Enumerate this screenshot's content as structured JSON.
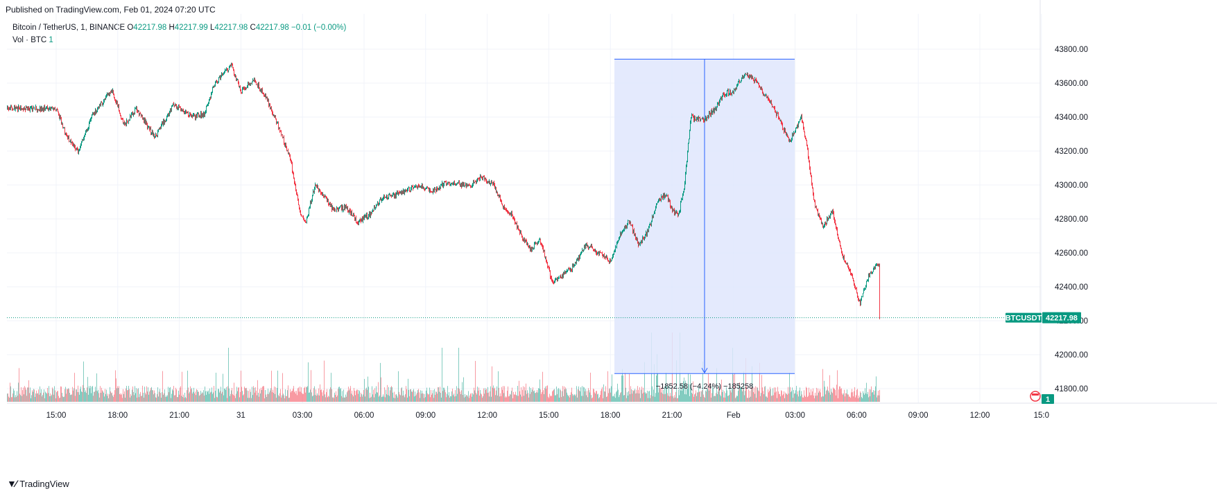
{
  "header": {
    "published": "Published on TradingView.com, Feb 01, 2024 07:20 UTC"
  },
  "legend": {
    "symbol": "Bitcoin / TetherUS, 1, BINANCE",
    "o_label": "O",
    "o_value": "42217.98",
    "h_label": "H",
    "h_value": "42217.99",
    "l_label": "L",
    "l_value": "42217.98",
    "c_label": "C",
    "c_value": "42217.98",
    "change": "−0.01 (−0.00%)",
    "vol_label": "Vol · BTC",
    "vol_value": "1"
  },
  "price_badge": {
    "symbol": "BTCUSDT",
    "value": "42217.98"
  },
  "volume_badge": "1",
  "measure_label": "−1852.58 (−4.24%) −185258",
  "footer": {
    "brand": "TradingView"
  },
  "colors": {
    "up": "#089981",
    "down": "#f23645",
    "measure_fill": "#dfe6fd",
    "measure_line": "#2962ff",
    "grid": "#f0f3fa"
  },
  "chart_data": {
    "type": "candlestick",
    "symbol": "BTCUSDT",
    "interval": "1 minute",
    "ylim": [
      41700,
      43850
    ],
    "y_ticks": [
      "43800.00",
      "43600.00",
      "43400.00",
      "43200.00",
      "43000.00",
      "42800.00",
      "42600.00",
      "42400.00",
      "42200.00",
      "42000.00",
      "41800.00"
    ],
    "x_ticks": [
      "15:00",
      "18:00",
      "21:00",
      "31",
      "03:00",
      "06:00",
      "09:00",
      "12:00",
      "15:00",
      "18:00",
      "21:00",
      "Feb",
      "03:00",
      "06:00",
      "09:00",
      "12:00",
      "15:0"
    ],
    "last_price": 42217.98,
    "price_path": [
      [
        0,
        43450
      ],
      [
        0.15,
        43300
      ],
      [
        0.35,
        43200
      ],
      [
        0.6,
        43420
      ],
      [
        0.9,
        43560
      ],
      [
        1.1,
        43350
      ],
      [
        1.3,
        43450
      ],
      [
        1.6,
        43280
      ],
      [
        1.9,
        43470
      ],
      [
        2.2,
        43400
      ],
      [
        2.4,
        43420
      ],
      [
        2.55,
        43580
      ],
      [
        2.7,
        43660
      ],
      [
        2.85,
        43700
      ],
      [
        3.0,
        43550
      ],
      [
        3.2,
        43620
      ],
      [
        3.4,
        43520
      ],
      [
        3.6,
        43350
      ],
      [
        3.8,
        43150
      ],
      [
        3.95,
        42850
      ],
      [
        4.05,
        42780
      ],
      [
        4.2,
        43000
      ],
      [
        4.35,
        42930
      ],
      [
        4.5,
        42850
      ],
      [
        4.7,
        42870
      ],
      [
        4.9,
        42780
      ],
      [
        5.1,
        42830
      ],
      [
        5.3,
        42930
      ],
      [
        5.5,
        42940
      ],
      [
        5.7,
        42970
      ],
      [
        5.9,
        43000
      ],
      [
        6.1,
        42960
      ],
      [
        6.3,
        43010
      ],
      [
        6.5,
        43010
      ],
      [
        6.7,
        42990
      ],
      [
        6.9,
        43050
      ],
      [
        7.1,
        43000
      ],
      [
        7.25,
        42880
      ],
      [
        7.4,
        42820
      ],
      [
        7.55,
        42700
      ],
      [
        7.7,
        42620
      ],
      [
        7.85,
        42680
      ],
      [
        8.05,
        42430
      ],
      [
        8.2,
        42460
      ],
      [
        8.4,
        42520
      ],
      [
        8.6,
        42650
      ],
      [
        8.8,
        42600
      ],
      [
        9.0,
        42550
      ],
      [
        9.15,
        42700
      ],
      [
        9.3,
        42790
      ],
      [
        9.45,
        42650
      ],
      [
        9.6,
        42720
      ],
      [
        9.75,
        42900
      ],
      [
        9.9,
        42950
      ],
      [
        10.0,
        42850
      ],
      [
        10.1,
        42820
      ],
      [
        10.2,
        43000
      ],
      [
        10.3,
        43400
      ],
      [
        10.5,
        43380
      ],
      [
        10.7,
        43450
      ],
      [
        10.85,
        43540
      ],
      [
        11.0,
        43550
      ],
      [
        11.15,
        43650
      ],
      [
        11.3,
        43640
      ],
      [
        11.4,
        43580
      ],
      [
        11.6,
        43480
      ],
      [
        11.75,
        43380
      ],
      [
        11.9,
        43250
      ],
      [
        12.1,
        43400
      ],
      [
        12.2,
        43200
      ],
      [
        12.3,
        42900
      ],
      [
        12.45,
        42750
      ],
      [
        12.6,
        42850
      ],
      [
        12.75,
        42600
      ],
      [
        12.9,
        42480
      ],
      [
        13.05,
        42300
      ],
      [
        13.2,
        42480
      ],
      [
        13.3,
        42520
      ],
      [
        13.45,
        42580
      ],
      [
        13.6,
        42640
      ],
      [
        13.8,
        42660
      ],
      [
        14.0,
        42600
      ],
      [
        14.2,
        42650
      ],
      [
        14.35,
        42560
      ],
      [
        14.5,
        42450
      ],
      [
        14.6,
        42220
      ],
      [
        14.7,
        42000
      ],
      [
        14.8,
        41950
      ],
      [
        15.0,
        42150
      ],
      [
        15.2,
        42180
      ],
      [
        15.35,
        42120
      ],
      [
        15.5,
        42050
      ],
      [
        15.7,
        41980
      ],
      [
        15.9,
        42100
      ],
      [
        16.1,
        42080
      ],
      [
        16.3,
        42150
      ],
      [
        16.5,
        42200
      ],
      [
        16.65,
        42180
      ],
      [
        16.75,
        42218
      ]
    ],
    "volume_note": "volume bars below price, up to roughly 1000 BTC per minute",
    "measure": {
      "from_time": "18:30",
      "to_time": "01:30",
      "from_price": 43741.5,
      "to_price": 41888.9,
      "change": -1852.58,
      "change_pct": -4.24
    }
  }
}
